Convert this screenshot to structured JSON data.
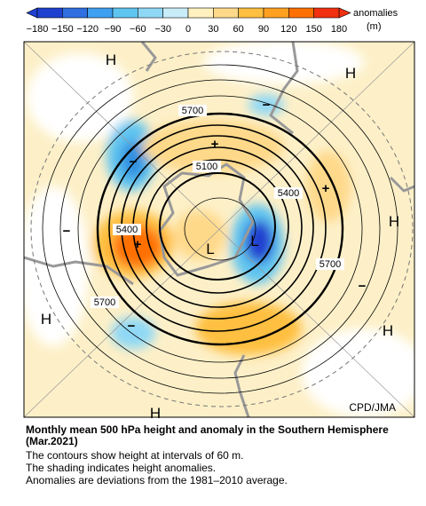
{
  "colorbar": {
    "ticks": [
      "−180",
      "−150",
      "−120",
      "−90",
      "−60",
      "−30",
      "0",
      "30",
      "60",
      "90",
      "120",
      "150",
      "180"
    ],
    "unit_label": "anomalies",
    "unit": "(m)"
  },
  "map": {
    "pressure_labels": [
      "H",
      "H",
      "H",
      "H",
      "H",
      "H",
      "L",
      "L"
    ],
    "anomaly_signs": [
      "+",
      "+",
      "+",
      "−",
      "−",
      "−",
      "−",
      "−"
    ],
    "contour_labels": [
      "5700",
      "5700",
      "5700",
      "5100",
      "5400",
      "5400"
    ],
    "credit": "CPD/JMA"
  },
  "caption": {
    "title": "Monthly mean 500 hPa height and anomaly in the Southern Hemisphere (Mar.2021)",
    "lines": [
      "The contours show height at intervals of 60 m.",
      "The shading indicates height anomalies.",
      "Anomalies are deviations from the 1981–2010 average."
    ]
  }
}
